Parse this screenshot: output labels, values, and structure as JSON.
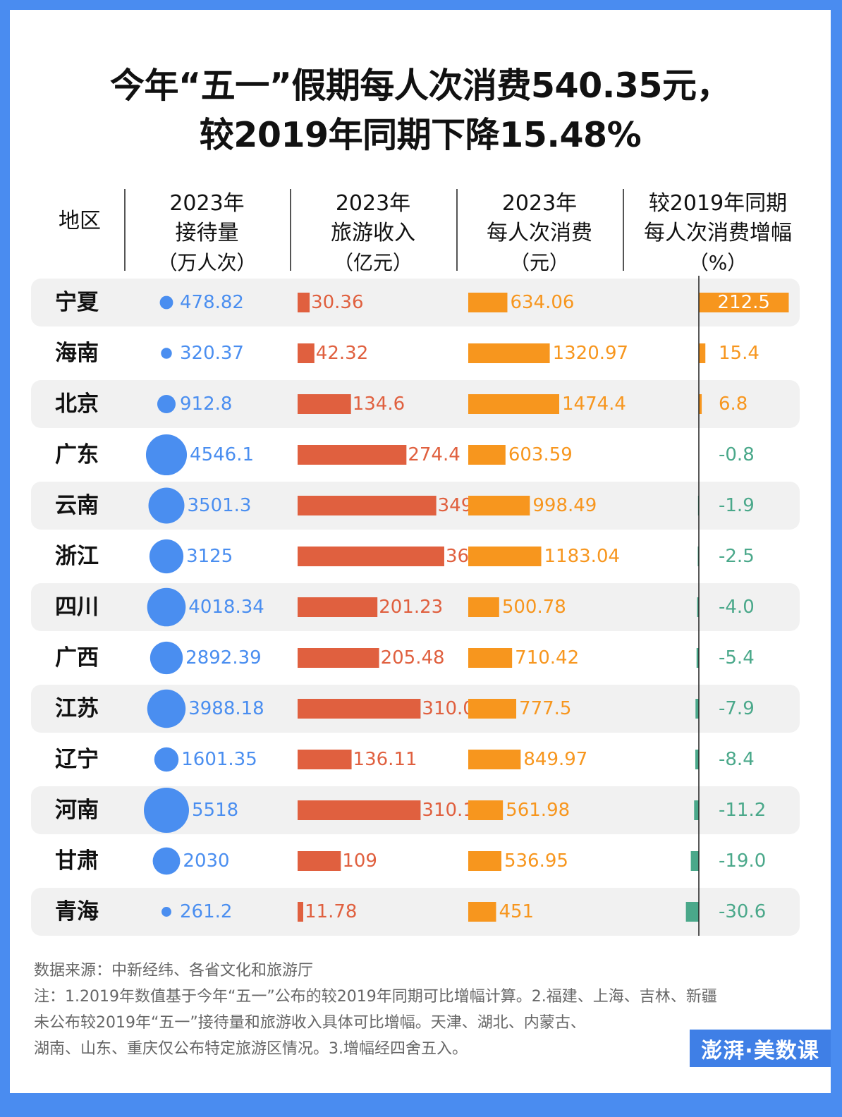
{
  "title": {
    "line1": "今年“五一”假期每人次消费540.35元，",
    "line2": "较2019年同期下降15.48%"
  },
  "headers": {
    "region": "地区",
    "visitors": {
      "l1": "2023年",
      "l2": "接待量",
      "unit": "（万人次）"
    },
    "revenue": {
      "l1": "2023年",
      "l2": "旅游收入",
      "unit": "（亿元）"
    },
    "per_capita": {
      "l1": "2023年",
      "l2": "每人次消费",
      "unit": "（元）"
    },
    "change": {
      "l1": "较2019年同期",
      "l2": "每人次消费增幅",
      "unit": "（%）"
    }
  },
  "colors": {
    "visitors": "#4a8ef0",
    "revenue": "#e0603f",
    "per_capita": "#f7961e",
    "change_pos": "#f7961e",
    "change_neg": "#4aa88a",
    "row_shade": "#f1f1f1",
    "frame": "#4a8cf0"
  },
  "chart_data": {
    "type": "table",
    "categories": [
      "宁夏",
      "海南",
      "北京",
      "广东",
      "云南",
      "浙江",
      "四川",
      "广西",
      "江苏",
      "辽宁",
      "河南",
      "甘肃",
      "青海"
    ],
    "series": [
      {
        "name": "2023年接待量（万人次）",
        "mark": "bubble",
        "values": [
          "478.82",
          "320.37",
          "912.8",
          "4546.1",
          "3501.3",
          "3125",
          "4018.34",
          "2892.39",
          "3988.18",
          "1601.35",
          "5518",
          "2030",
          "261.2"
        ]
      },
      {
        "name": "2023年旅游收入（亿元）",
        "mark": "bar",
        "values": [
          "30.36",
          "42.32",
          "134.6",
          "274.4",
          "349.6",
          "369.7",
          "201.23",
          "205.48",
          "310.08",
          "136.11",
          "310.1",
          "109",
          "11.78"
        ]
      },
      {
        "name": "2023年每人次消费（元）",
        "mark": "bar",
        "values": [
          "634.06",
          "1320.97",
          "1474.4",
          "603.59",
          "998.49",
          "1183.04",
          "500.78",
          "710.42",
          "777.5",
          "849.97",
          "561.98",
          "536.95",
          "451"
        ]
      },
      {
        "name": "较2019年同期每人次消费增幅（%）",
        "mark": "diverging-bar",
        "values": [
          "212.5",
          "15.4",
          "6.8",
          "-0.8",
          "-1.9",
          "-2.5",
          "-4.0",
          "-5.4",
          "-7.9",
          "-8.4",
          "-11.2",
          "-19.0",
          "-30.6"
        ]
      }
    ]
  },
  "footer": {
    "source": "数据来源：中新经纬、各省文化和旅游厅",
    "note1": "注：1.2019年数值基于今年“五一”公布的较2019年同期可比增幅计算。2.福建、上海、吉林、新疆",
    "note2": "未公布较2019年“五一”接待量和旅游收入具体可比增幅。天津、湖北、内蒙古、",
    "note3": "湖南、山东、重庆仅公布特定旅游区情况。3.增幅经四舍五入。"
  },
  "logo": "澎湃·美数课"
}
